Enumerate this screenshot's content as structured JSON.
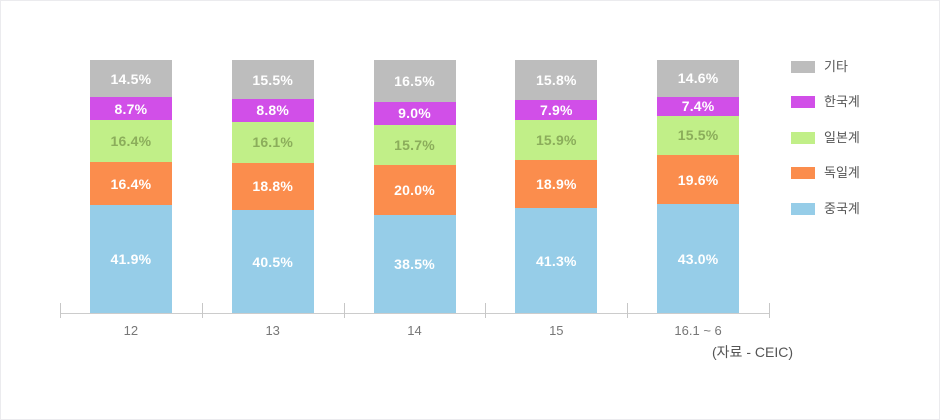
{
  "chart_data": {
    "type": "bar",
    "subtype": "stacked-100-percent",
    "title": "",
    "xlabel": "",
    "ylabel": "",
    "grid": false,
    "legend_position": "right",
    "stack_total": 100,
    "value_suffix": "%",
    "axis_color": "#cccccc",
    "tick_label_color": "#777777",
    "categories": [
      "12",
      "13",
      "14",
      "15",
      "16.1 ~ 6"
    ],
    "series": [
      {
        "name": "기타",
        "color": "#bdbdbd",
        "label_color": "#ffffff",
        "values": [
          14.5,
          15.5,
          16.5,
          15.8,
          14.6
        ]
      },
      {
        "name": "한국계",
        "color": "#d14fe8",
        "label_color": "#ffffff",
        "values": [
          8.7,
          8.8,
          9.0,
          7.9,
          7.4
        ]
      },
      {
        "name": "일본계",
        "color": "#c1ef88",
        "label_color": "#8bad5b",
        "values": [
          16.4,
          16.1,
          15.7,
          15.9,
          15.5
        ]
      },
      {
        "name": "독일계",
        "color": "#fb8d4d",
        "label_color": "#ffffff",
        "values": [
          16.4,
          18.8,
          20.0,
          18.9,
          19.6
        ]
      },
      {
        "name": "중국계",
        "color": "#96cde8",
        "label_color": "#ffffff",
        "values": [
          41.9,
          40.5,
          38.5,
          41.3,
          43.0
        ]
      }
    ]
  },
  "source_note": "(자료 - CEIC)"
}
